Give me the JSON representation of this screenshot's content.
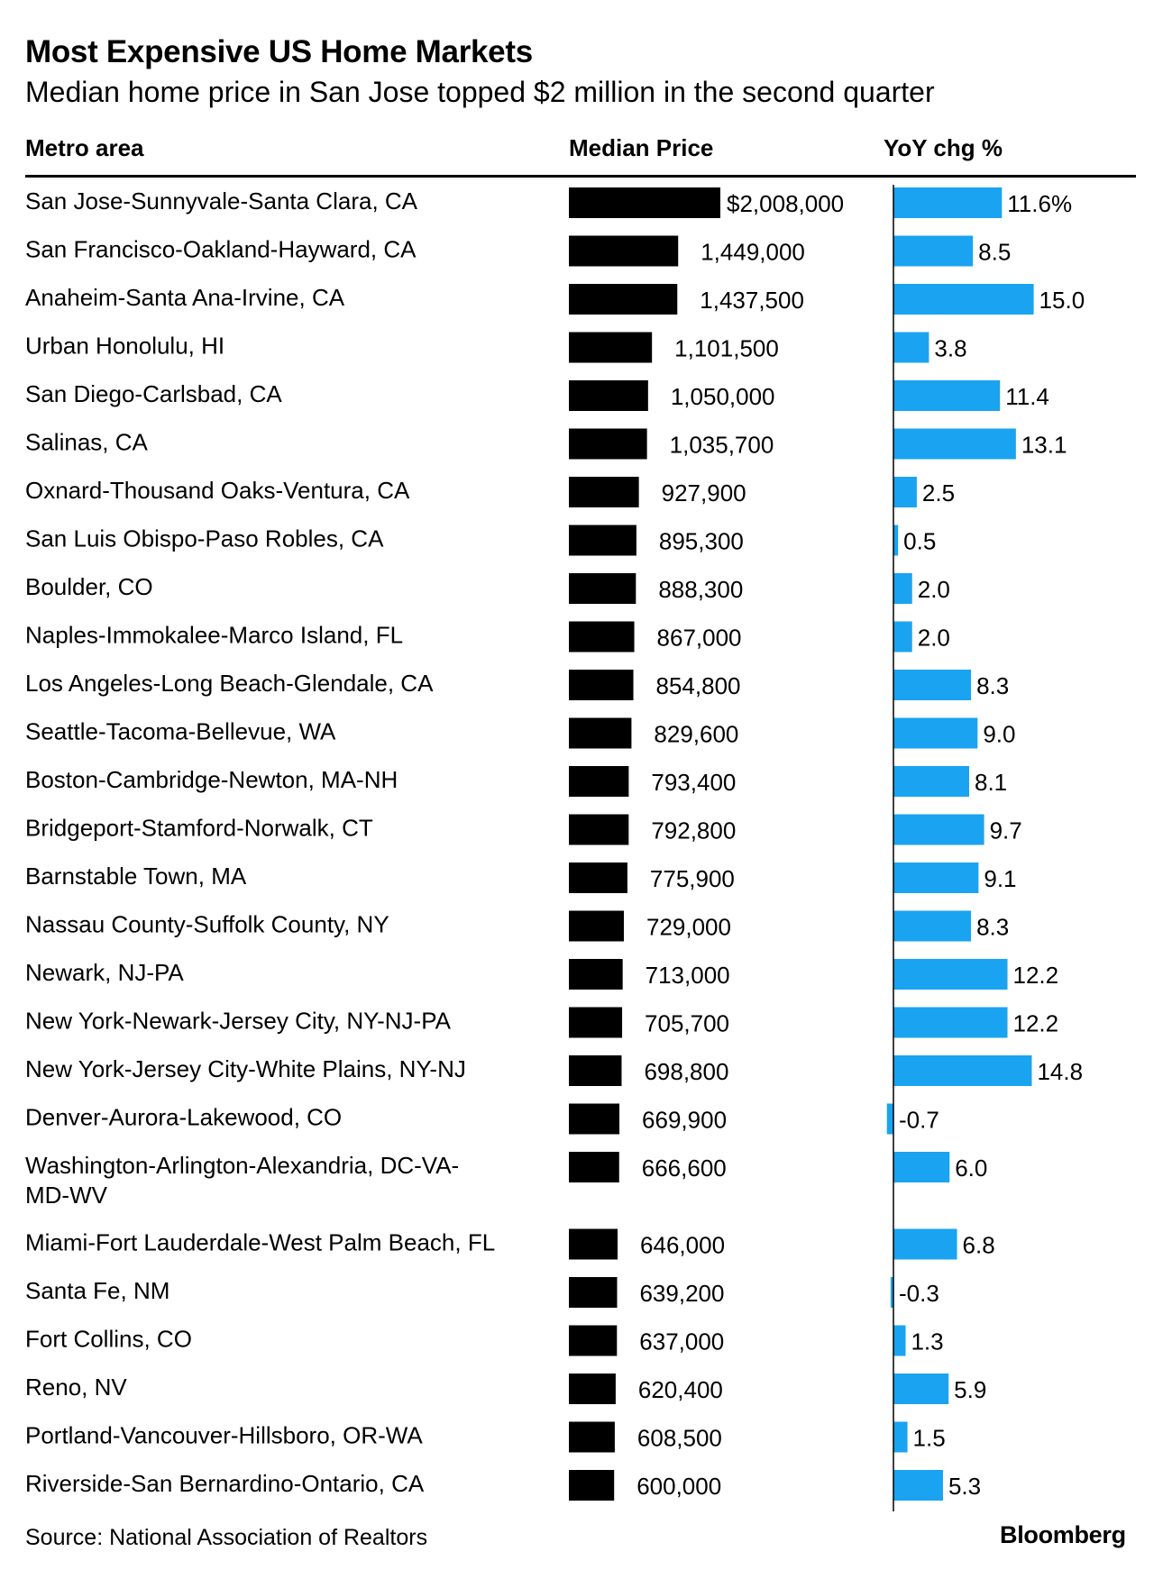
{
  "header": {
    "title": "Most Expensive US Home Markets",
    "subtitle": "Median home price in San Jose topped $2 million in the second quarter"
  },
  "footer": {
    "source": "Source: National Association of Realtors",
    "logo": "Bloomberg"
  },
  "colors": {
    "price_bar": "#000000",
    "change_bar": "#1aa3f0",
    "axis": "#000000"
  },
  "chart_data": {
    "type": "table",
    "columns": [
      "Metro area",
      "Median Price",
      "YoY chg %"
    ],
    "rows": [
      {
        "metro": [
          "San Jose-Sunnyvale-Santa Clara, CA"
        ],
        "price": 2008000,
        "price_label": "$2,008,000",
        "change": 11.6,
        "change_label": "11.6%"
      },
      {
        "metro": [
          "San Francisco-Oakland-Hayward, CA"
        ],
        "price": 1449000,
        "price_label": "1,449,000",
        "change": 8.5,
        "change_label": "8.5"
      },
      {
        "metro": [
          "Anaheim-Santa Ana-Irvine, CA"
        ],
        "price": 1437500,
        "price_label": "1,437,500",
        "change": 15.0,
        "change_label": "15.0"
      },
      {
        "metro": [
          "Urban Honolulu, HI"
        ],
        "price": 1101500,
        "price_label": "1,101,500",
        "change": 3.8,
        "change_label": "3.8"
      },
      {
        "metro": [
          "San Diego-Carlsbad, CA"
        ],
        "price": 1050000,
        "price_label": "1,050,000",
        "change": 11.4,
        "change_label": "11.4"
      },
      {
        "metro": [
          "Salinas, CA"
        ],
        "price": 1035700,
        "price_label": "1,035,700",
        "change": 13.1,
        "change_label": "13.1"
      },
      {
        "metro": [
          "Oxnard-Thousand Oaks-Ventura, CA"
        ],
        "price": 927900,
        "price_label": "927,900",
        "change": 2.5,
        "change_label": "2.5"
      },
      {
        "metro": [
          "San Luis Obispo-Paso Robles, CA"
        ],
        "price": 895300,
        "price_label": "895,300",
        "change": 0.5,
        "change_label": "0.5"
      },
      {
        "metro": [
          "Boulder, CO"
        ],
        "price": 888300,
        "price_label": "888,300",
        "change": 2.0,
        "change_label": "2.0"
      },
      {
        "metro": [
          "Naples-Immokalee-Marco Island, FL"
        ],
        "price": 867000,
        "price_label": "867,000",
        "change": 2.0,
        "change_label": "2.0"
      },
      {
        "metro": [
          "Los Angeles-Long Beach-Glendale, CA"
        ],
        "price": 854800,
        "price_label": "854,800",
        "change": 8.3,
        "change_label": "8.3"
      },
      {
        "metro": [
          "Seattle-Tacoma-Bellevue, WA"
        ],
        "price": 829600,
        "price_label": "829,600",
        "change": 9.0,
        "change_label": "9.0"
      },
      {
        "metro": [
          "Boston-Cambridge-Newton, MA-NH"
        ],
        "price": 793400,
        "price_label": "793,400",
        "change": 8.1,
        "change_label": "8.1"
      },
      {
        "metro": [
          "Bridgeport-Stamford-Norwalk, CT"
        ],
        "price": 792800,
        "price_label": "792,800",
        "change": 9.7,
        "change_label": "9.7"
      },
      {
        "metro": [
          "Barnstable Town, MA"
        ],
        "price": 775900,
        "price_label": "775,900",
        "change": 9.1,
        "change_label": "9.1"
      },
      {
        "metro": [
          "Nassau County-Suffolk County, NY"
        ],
        "price": 729000,
        "price_label": "729,000",
        "change": 8.3,
        "change_label": "8.3"
      },
      {
        "metro": [
          "Newark, NJ-PA"
        ],
        "price": 713000,
        "price_label": "713,000",
        "change": 12.2,
        "change_label": "12.2"
      },
      {
        "metro": [
          "New York-Newark-Jersey City, NY-NJ-PA"
        ],
        "price": 705700,
        "price_label": "705,700",
        "change": 12.2,
        "change_label": "12.2"
      },
      {
        "metro": [
          "New York-Jersey City-White Plains, NY-NJ"
        ],
        "price": 698800,
        "price_label": "698,800",
        "change": 14.8,
        "change_label": "14.8"
      },
      {
        "metro": [
          "Denver-Aurora-Lakewood, CO"
        ],
        "price": 669900,
        "price_label": "669,900",
        "change": -0.7,
        "change_label": "-0.7"
      },
      {
        "metro": [
          "Washington-Arlington-Alexandria, DC-VA-",
          "MD-WV"
        ],
        "price": 666600,
        "price_label": "666,600",
        "change": 6.0,
        "change_label": "6.0"
      },
      {
        "metro": [
          "Miami-Fort Lauderdale-West Palm Beach, FL"
        ],
        "price": 646000,
        "price_label": "646,000",
        "change": 6.8,
        "change_label": "6.8"
      },
      {
        "metro": [
          "Santa Fe, NM"
        ],
        "price": 639200,
        "price_label": "639,200",
        "change": -0.3,
        "change_label": "-0.3"
      },
      {
        "metro": [
          "Fort Collins, CO"
        ],
        "price": 637000,
        "price_label": "637,000",
        "change": 1.3,
        "change_label": "1.3"
      },
      {
        "metro": [
          "Reno, NV"
        ],
        "price": 620400,
        "price_label": "620,400",
        "change": 5.9,
        "change_label": "5.9"
      },
      {
        "metro": [
          "Portland-Vancouver-Hillsboro, OR-WA"
        ],
        "price": 608500,
        "price_label": "608,500",
        "change": 1.5,
        "change_label": "1.5"
      },
      {
        "metro": [
          "Riverside-San Bernardino-Ontario, CA"
        ],
        "price": 600000,
        "price_label": "600,000",
        "change": 5.3,
        "change_label": "5.3"
      }
    ]
  }
}
